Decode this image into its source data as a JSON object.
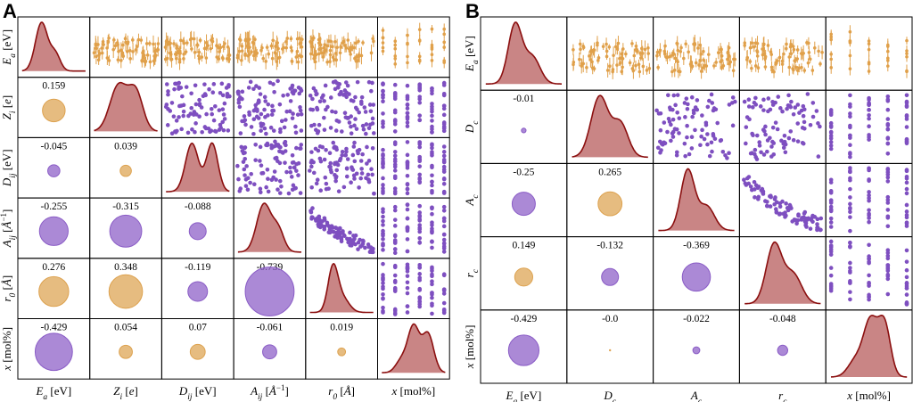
{
  "panels": [
    {
      "letter": "A",
      "variables": [
        "E_a [eV]",
        "Z_i [e]",
        "D_ij [eV]",
        "A_ij [Å^-1]",
        "r_0 [Å]",
        "x [mol%]"
      ],
      "x_labels": [
        [
          {
            "t": "E"
          },
          {
            "t": "a",
            "sub": true
          },
          {
            "t": " [eV]"
          }
        ],
        [
          {
            "t": "Z"
          },
          {
            "t": "i",
            "sub": true
          },
          {
            "t": " ["
          },
          {
            "t": "e",
            "it": true
          },
          {
            "t": "]"
          }
        ],
        [
          {
            "t": "D"
          },
          {
            "t": "ij",
            "sub": true
          },
          {
            "t": " [eV]"
          }
        ],
        [
          {
            "t": "A"
          },
          {
            "t": "ij",
            "sub": true
          },
          {
            "t": " ["
          },
          {
            "t": "Å",
            "it": true
          },
          {
            "t": "−1",
            "sup": true
          },
          {
            "t": "]"
          }
        ],
        [
          {
            "t": "r"
          },
          {
            "t": "0",
            "sub": true
          },
          {
            "t": " ["
          },
          {
            "t": "Å",
            "it": true
          },
          {
            "t": "]"
          }
        ],
        [
          {
            "t": "x",
            "it": true
          },
          {
            "t": " [mol%]"
          }
        ]
      ],
      "y_labels": [
        [
          {
            "t": "E"
          },
          {
            "t": "a",
            "sub": true
          },
          {
            "t": " [eV]"
          }
        ],
        [
          {
            "t": "Z"
          },
          {
            "t": "i",
            "sub": true
          },
          {
            "t": " ["
          },
          {
            "t": "e",
            "it": true
          },
          {
            "t": "]"
          }
        ],
        [
          {
            "t": "D"
          },
          {
            "t": "ij",
            "sub": true
          },
          {
            "t": " [eV]"
          }
        ],
        [
          {
            "t": "A"
          },
          {
            "t": "ij",
            "sub": true
          },
          {
            "t": " ["
          },
          {
            "t": "Å",
            "it": true
          },
          {
            "t": "−1",
            "sup": true
          },
          {
            "t": "]"
          }
        ],
        [
          {
            "t": "r"
          },
          {
            "t": "0",
            "sub": true
          },
          {
            "t": " ["
          },
          {
            "t": "Å",
            "it": true
          },
          {
            "t": "]"
          }
        ],
        [
          {
            "t": "x",
            "it": true
          },
          {
            "t": " [mol%]"
          }
        ]
      ]
    },
    {
      "letter": "B",
      "variables": [
        "E_a [eV]",
        "D_c",
        "A_c",
        "r_c",
        "x [mol%]"
      ],
      "x_labels": [
        [
          {
            "t": "E"
          },
          {
            "t": "a",
            "sub": true
          },
          {
            "t": " [eV]"
          }
        ],
        [
          {
            "t": "D"
          },
          {
            "t": "c",
            "sub": true
          }
        ],
        [
          {
            "t": "A"
          },
          {
            "t": "c",
            "sub": true
          }
        ],
        [
          {
            "t": "r"
          },
          {
            "t": "c",
            "sub": true
          }
        ],
        [
          {
            "t": "x",
            "it": true
          },
          {
            "t": " [mol%]"
          }
        ]
      ],
      "y_labels": [
        [
          {
            "t": "E"
          },
          {
            "t": "a",
            "sub": true
          },
          {
            "t": " [eV]"
          }
        ],
        [
          {
            "t": "D"
          },
          {
            "t": "c",
            "sub": true
          }
        ],
        [
          {
            "t": "A"
          },
          {
            "t": "c",
            "sub": true
          }
        ],
        [
          {
            "t": "r"
          },
          {
            "t": "c",
            "sub": true
          }
        ],
        [
          {
            "t": "x",
            "it": true
          },
          {
            "t": " [mol%]"
          }
        ]
      ]
    }
  ],
  "chart_data": [
    {
      "type": "pairplot",
      "panel": "A",
      "variables": [
        "E_a [eV]",
        "Z_i [e]",
        "D_ij [eV]",
        "A_ij [Å^-1]",
        "r_0 [Å]",
        "x [mol%]"
      ],
      "diagonal": "kernel density estimate",
      "upper_triangle": "scatter (first row: mean with error bars)",
      "lower_triangle": "correlation coefficient shown as text and circle (area ∝ |r|)",
      "correlations": [
        {
          "row": 1,
          "col": 0,
          "value": "0.159"
        },
        {
          "row": 2,
          "col": 0,
          "value": "-0.045"
        },
        {
          "row": 2,
          "col": 1,
          "value": "0.039"
        },
        {
          "row": 3,
          "col": 0,
          "value": "-0.255"
        },
        {
          "row": 3,
          "col": 1,
          "value": "-0.315"
        },
        {
          "row": 3,
          "col": 2,
          "value": "-0.088"
        },
        {
          "row": 4,
          "col": 0,
          "value": "0.276"
        },
        {
          "row": 4,
          "col": 1,
          "value": "0.348"
        },
        {
          "row": 4,
          "col": 2,
          "value": "-0.119"
        },
        {
          "row": 4,
          "col": 3,
          "value": "-0.739"
        },
        {
          "row": 5,
          "col": 0,
          "value": "-0.429"
        },
        {
          "row": 5,
          "col": 1,
          "value": "0.054"
        },
        {
          "row": 5,
          "col": 2,
          "value": "0.07"
        },
        {
          "row": 5,
          "col": 3,
          "value": "-0.061"
        },
        {
          "row": 5,
          "col": 4,
          "value": "0.019"
        }
      ]
    },
    {
      "type": "pairplot",
      "panel": "B",
      "variables": [
        "E_a [eV]",
        "D_c",
        "A_c",
        "r_c",
        "x [mol%]"
      ],
      "diagonal": "kernel density estimate",
      "upper_triangle": "scatter (first row: mean with error bars)",
      "lower_triangle": "correlation coefficient shown as text and circle (area ∝ |r|)",
      "correlations": [
        {
          "row": 1,
          "col": 0,
          "value": "-0.01"
        },
        {
          "row": 2,
          "col": 0,
          "value": "-0.25"
        },
        {
          "row": 2,
          "col": 1,
          "value": "0.265"
        },
        {
          "row": 3,
          "col": 0,
          "value": "0.149"
        },
        {
          "row": 3,
          "col": 1,
          "value": "-0.132"
        },
        {
          "row": 3,
          "col": 2,
          "value": "-0.369"
        },
        {
          "row": 4,
          "col": 0,
          "value": "-0.429"
        },
        {
          "row": 4,
          "col": 1,
          "value": "-0.0"
        },
        {
          "row": 4,
          "col": 2,
          "value": "-0.022"
        },
        {
          "row": 4,
          "col": 3,
          "value": "-0.048"
        }
      ]
    }
  ],
  "colors": {
    "positive": "#dda24f",
    "negative": "#8a5cc6",
    "scatter_errorbar": "#e0a04a",
    "scatter_points": "#7e4fc0",
    "kde_line": "#8b0f0f",
    "kde_fill": "#c98585",
    "frame": "#000000"
  }
}
